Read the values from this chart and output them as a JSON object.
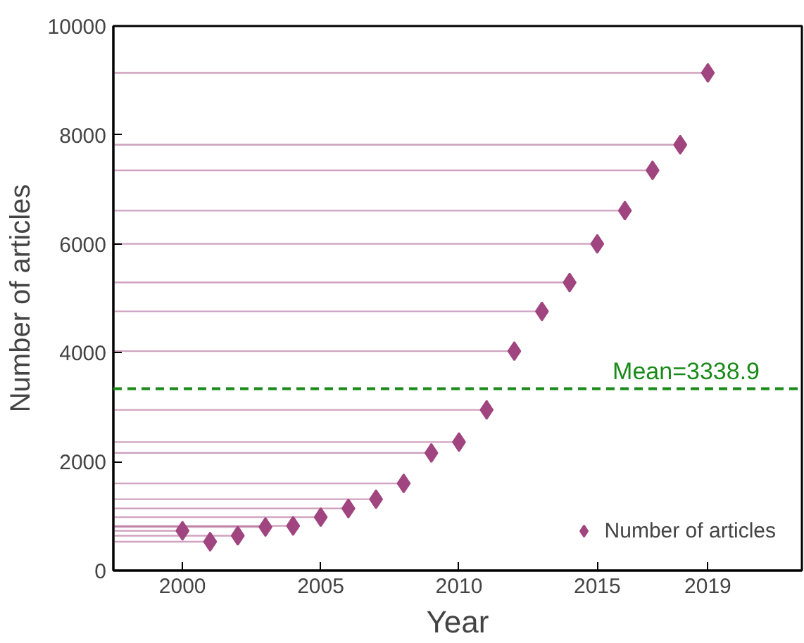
{
  "chart_data": {
    "type": "scatter",
    "xlabel": "Year",
    "ylabel": "Number of articles",
    "x": [
      2000,
      2001,
      2002,
      2003,
      2004,
      2005,
      2006,
      2007,
      2008,
      2009,
      2010,
      2011,
      2012,
      2013,
      2014,
      2015,
      2016,
      2017,
      2018,
      2019
    ],
    "series": [
      {
        "name": "Number of articles",
        "color": "#a0457f",
        "values": [
          730,
          530,
          640,
          800,
          820,
          980,
          1140,
          1310,
          1600,
          2160,
          2360,
          2950,
          4030,
          4760,
          5290,
          6000,
          6610,
          7350,
          7820,
          9140
        ],
        "xerrors": [
          [
            1997.5,
            2000
          ],
          [
            1997.5,
            2001
          ],
          [
            1997.5,
            2002
          ],
          [
            1997.5,
            2003
          ],
          [
            1997.5,
            2004
          ],
          [
            1997.5,
            2005
          ],
          [
            1997.5,
            2006
          ],
          [
            1997.5,
            2007
          ],
          [
            1997.5,
            2008
          ],
          [
            1997.5,
            2009
          ],
          [
            1997.5,
            2010
          ],
          [
            1997.5,
            2011
          ],
          [
            1997.5,
            2012
          ],
          [
            1997.5,
            2013
          ],
          [
            1997.5,
            2014
          ],
          [
            1997.5,
            2015
          ],
          [
            1997.5,
            2016
          ],
          [
            1997.5,
            2017
          ],
          [
            1997.5,
            2018
          ],
          [
            1997.5,
            2019
          ]
        ]
      }
    ],
    "xlim": [
      1997.5,
      2022.4
    ],
    "ylim": [
      0,
      10000
    ],
    "xticks": [
      2000,
      2005,
      2010,
      2015,
      2019
    ],
    "yticks": [
      0,
      2000,
      4000,
      6000,
      8000,
      10000
    ],
    "ref_lines": [
      {
        "axis": "y",
        "value": 3338.9,
        "label": "Mean=3338.9",
        "color": "#1a8a1a",
        "line_style": "dashed"
      }
    ],
    "marker": "diamond",
    "legend": "bottom right",
    "grid": false
  }
}
